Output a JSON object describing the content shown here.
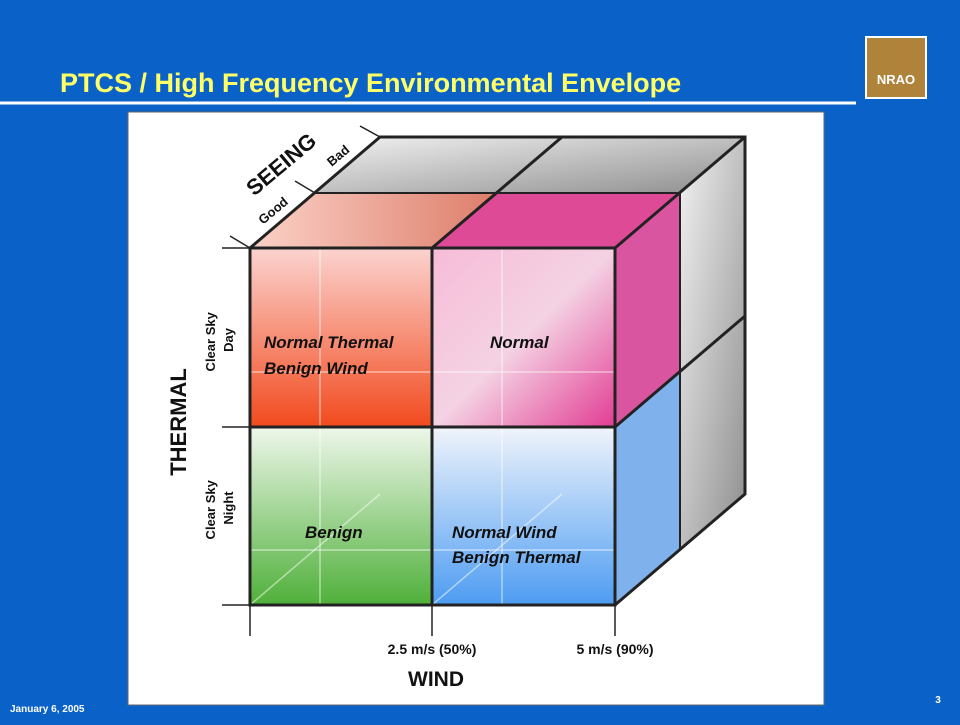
{
  "header": {
    "title": "PTCS / High Frequency Environmental Envelope",
    "logo": "NRAO"
  },
  "diagram": {
    "seeing": {
      "label": "SEEING",
      "levels": [
        "Good",
        "Bad"
      ]
    },
    "thermal": {
      "label": "THERMAL",
      "levels": [
        {
          "lines": [
            "Clear Sky",
            "Day"
          ]
        },
        {
          "lines": [
            "Clear Sky",
            "Night"
          ]
        }
      ]
    },
    "wind": {
      "label": "WIND",
      "levels": [
        "2.5 m/s (50%)",
        "5 m/s (90%)"
      ]
    },
    "cells": [
      {
        "lines": [
          "Normal Thermal",
          "Benign Wind"
        ]
      },
      {
        "lines": [
          "Normal"
        ]
      },
      {
        "lines": [
          "Benign"
        ]
      },
      {
        "lines": [
          "Normal Wind",
          "Benign Thermal"
        ]
      }
    ]
  },
  "footer": {
    "date": "January 6, 2005",
    "page": "3"
  }
}
